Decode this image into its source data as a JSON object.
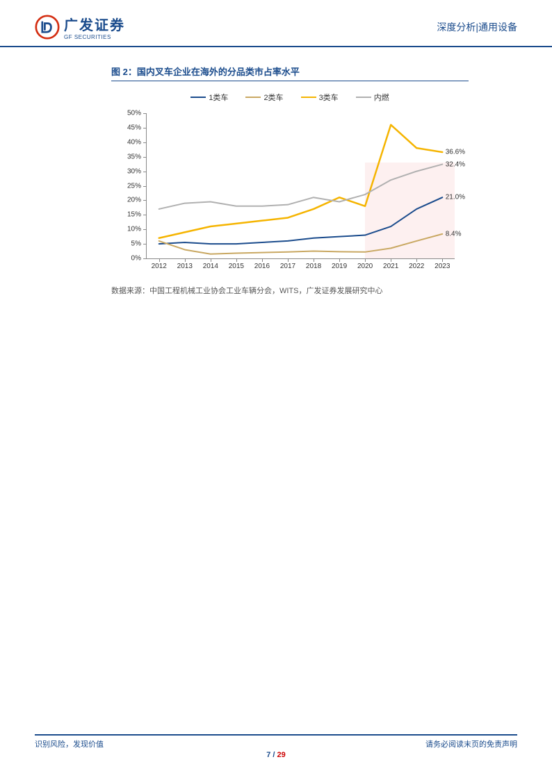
{
  "header": {
    "logo_cn": "广发证券",
    "logo_en": "GF SECURITIES",
    "right_text": "深度分析|通用设备"
  },
  "chart": {
    "type": "line",
    "title": "图 2：国内叉车企业在海外的分品类市占率水平",
    "legend_items": [
      {
        "label": "1类车",
        "color": "#1a4b8c"
      },
      {
        "label": "2类车",
        "color": "#c9a862"
      },
      {
        "label": "3类车",
        "color": "#f5b400"
      },
      {
        "label": "内燃",
        "color": "#b0b0b0"
      }
    ],
    "x_categories": [
      "2012",
      "2013",
      "2014",
      "2015",
      "2016",
      "2017",
      "2018",
      "2019",
      "2020",
      "2021",
      "2022",
      "2023"
    ],
    "y_ticks": [
      0,
      5,
      10,
      15,
      20,
      25,
      30,
      35,
      40,
      45,
      50
    ],
    "y_max": 50,
    "y_suffix": "%",
    "series": {
      "s1": {
        "color": "#1a4b8c",
        "width": 2,
        "values": [
          5,
          5.5,
          5,
          5,
          5.5,
          6,
          7,
          7.5,
          8,
          11,
          17,
          21
        ],
        "end_label": "21.0%"
      },
      "s2": {
        "color": "#c9a862",
        "width": 2,
        "values": [
          6,
          3,
          1.5,
          1.8,
          2,
          2.2,
          2.5,
          2.3,
          2.2,
          3.5,
          6,
          8.4
        ],
        "end_label": "8.4%"
      },
      "s3": {
        "color": "#f5b400",
        "width": 2.5,
        "values": [
          7,
          9,
          11,
          12,
          13,
          14,
          17,
          21,
          18,
          46,
          38,
          36.6
        ],
        "end_label": "36.6%"
      },
      "s4": {
        "color": "#b0b0b0",
        "width": 2,
        "values": [
          17,
          19,
          19.5,
          18,
          18,
          18.5,
          21,
          19.5,
          22,
          27,
          30,
          32.4
        ],
        "end_label": "32.4%"
      }
    },
    "highlight": {
      "from_index": 8,
      "to_index": 11,
      "color": "#fce9ea",
      "top_value": 33
    },
    "axis_color": "#888",
    "label_fontsize": 10,
    "source": "数据来源：中国工程机械工业协会工业车辆分会，WITS，广发证券发展研究中心"
  },
  "footer": {
    "left": "识别风险，发现价值",
    "right": "请务必阅读末页的免责声明",
    "page_current": "7",
    "page_sep": " / ",
    "page_total": "29"
  },
  "colors": {
    "brand": "#1a4b8c",
    "accent_red": "#c00"
  }
}
